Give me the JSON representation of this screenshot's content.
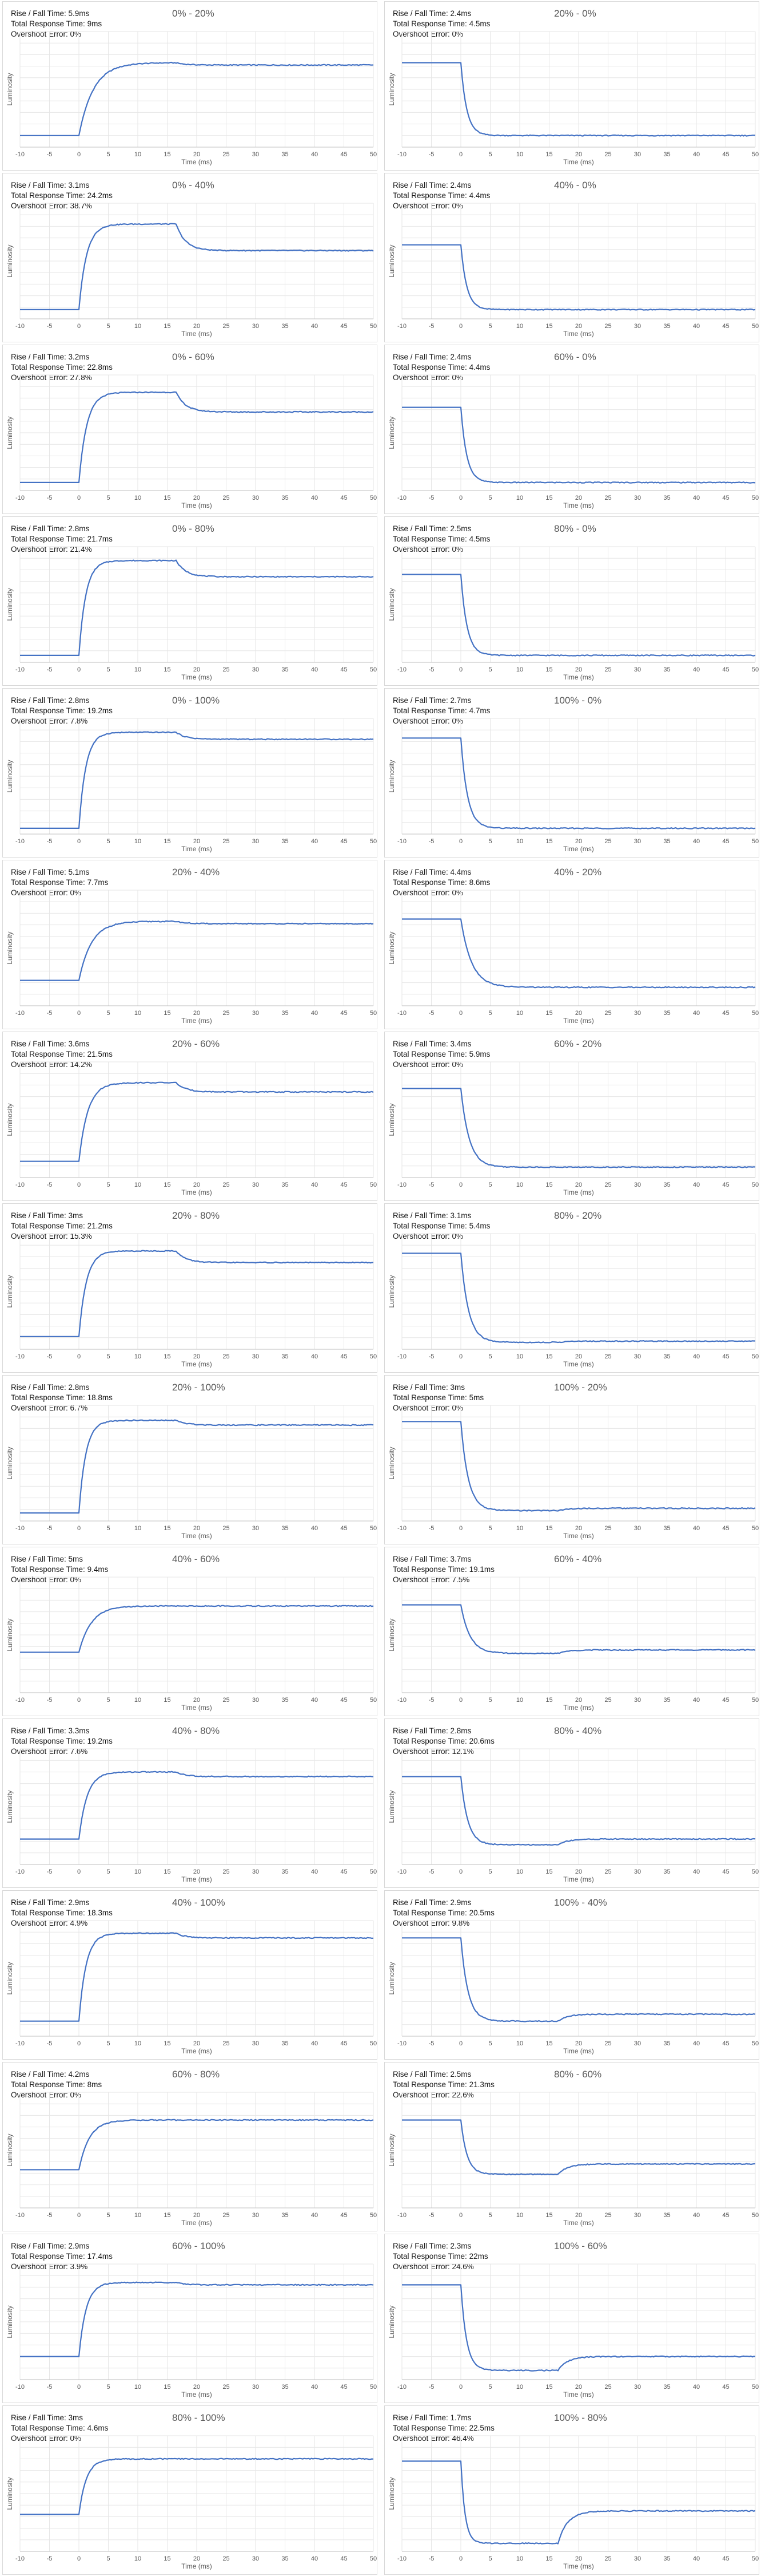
{
  "chart_common": {
    "xlabel": "Time (ms)",
    "ylabel": "Luminosity",
    "xlim": [
      -10,
      50
    ],
    "xticks": [
      -10,
      -5,
      0,
      5,
      10,
      15,
      20,
      25,
      30,
      35,
      40,
      45,
      50
    ],
    "line_color": "#4472c4",
    "grid_color": "#e6e6e6",
    "grid": true
  },
  "chart_data": [
    {
      "type": "line",
      "title": "0% - 20%",
      "stats": [
        "Rise / Fall Time: 5.9ms",
        "Total Response Time: 9ms",
        "Overshoot Error: 0%"
      ],
      "start": 0.1,
      "peak": 0.73,
      "final": 0.71,
      "direction": "rise",
      "response_ms": 5.9
    },
    {
      "type": "line",
      "title": "20% - 0%",
      "stats": [
        "Rise / Fall Time: 2.4ms",
        "Total Response Time: 4.5ms",
        "Overshoot Error: 0%"
      ],
      "start": 0.73,
      "peak": 0.1,
      "final": 0.1,
      "direction": "fall",
      "response_ms": 2.4
    },
    {
      "type": "line",
      "title": "0% - 40%",
      "stats": [
        "Rise / Fall Time: 3.1ms",
        "Total Response Time: 24.2ms",
        "Overshoot Error: 38.7%"
      ],
      "start": 0.08,
      "peak": 0.82,
      "final": 0.59,
      "direction": "rise",
      "response_ms": 3.1
    },
    {
      "type": "line",
      "title": "40% - 0%",
      "stats": [
        "Rise / Fall Time: 2.4ms",
        "Total Response Time: 4.4ms",
        "Overshoot Error: 0%"
      ],
      "start": 0.64,
      "peak": 0.08,
      "final": 0.08,
      "direction": "fall",
      "response_ms": 2.4
    },
    {
      "type": "line",
      "title": "0% - 60%",
      "stats": [
        "Rise / Fall Time: 3.2ms",
        "Total Response Time: 22.8ms",
        "Overshoot Error: 27.8%"
      ],
      "start": 0.07,
      "peak": 0.85,
      "final": 0.68,
      "direction": "rise",
      "response_ms": 3.2
    },
    {
      "type": "line",
      "title": "60% - 0%",
      "stats": [
        "Rise / Fall Time: 2.4ms",
        "Total Response Time: 4.4ms",
        "Overshoot Error: 0%"
      ],
      "start": 0.72,
      "peak": 0.07,
      "final": 0.07,
      "direction": "fall",
      "response_ms": 2.4
    },
    {
      "type": "line",
      "title": "0% - 80%",
      "stats": [
        "Rise / Fall Time: 2.8ms",
        "Total Response Time: 21.7ms",
        "Overshoot Error: 21.4%"
      ],
      "start": 0.06,
      "peak": 0.88,
      "final": 0.74,
      "direction": "rise",
      "response_ms": 2.8
    },
    {
      "type": "line",
      "title": "80% - 0%",
      "stats": [
        "Rise / Fall Time: 2.5ms",
        "Total Response Time: 4.5ms",
        "Overshoot Error: 0%"
      ],
      "start": 0.76,
      "peak": 0.06,
      "final": 0.06,
      "direction": "fall",
      "response_ms": 2.5
    },
    {
      "type": "line",
      "title": "0% - 100%",
      "stats": [
        "Rise / Fall Time: 2.8ms",
        "Total Response Time: 19.2ms",
        "Overshoot Error: 7.8%"
      ],
      "start": 0.05,
      "peak": 0.88,
      "final": 0.82,
      "direction": "rise",
      "response_ms": 2.8
    },
    {
      "type": "line",
      "title": "100% - 0%",
      "stats": [
        "Rise / Fall Time: 2.7ms",
        "Total Response Time: 4.7ms",
        "Overshoot Error: 0%"
      ],
      "start": 0.83,
      "peak": 0.05,
      "final": 0.05,
      "direction": "fall",
      "response_ms": 2.7
    },
    {
      "type": "line",
      "title": "20% - 40%",
      "stats": [
        "Rise / Fall Time: 5.1ms",
        "Total Response Time: 7.7ms",
        "Overshoot Error: 0%"
      ],
      "start": 0.22,
      "peak": 0.73,
      "final": 0.71,
      "direction": "rise",
      "response_ms": 5.1
    },
    {
      "type": "line",
      "title": "40% - 20%",
      "stats": [
        "Rise / Fall Time: 4.4ms",
        "Total Response Time: 8.6ms",
        "Overshoot Error: 0%"
      ],
      "start": 0.75,
      "peak": 0.16,
      "final": 0.16,
      "direction": "fall",
      "response_ms": 4.4
    },
    {
      "type": "line",
      "title": "20% - 60%",
      "stats": [
        "Rise / Fall Time: 3.6ms",
        "Total Response Time: 21.5ms",
        "Overshoot Error: 14.2%"
      ],
      "start": 0.14,
      "peak": 0.82,
      "final": 0.74,
      "direction": "rise",
      "response_ms": 3.6
    },
    {
      "type": "line",
      "title": "60% - 20%",
      "stats": [
        "Rise / Fall Time: 3.4ms",
        "Total Response Time: 5.9ms",
        "Overshoot Error: 0%"
      ],
      "start": 0.77,
      "peak": 0.09,
      "final": 0.09,
      "direction": "fall",
      "response_ms": 3.4
    },
    {
      "type": "line",
      "title": "20% - 80%",
      "stats": [
        "Rise / Fall Time: 3ms",
        "Total Response Time: 21.2ms",
        "Overshoot Error: 15.3%"
      ],
      "start": 0.11,
      "peak": 0.85,
      "final": 0.75,
      "direction": "rise",
      "response_ms": 3.0
    },
    {
      "type": "line",
      "title": "80% - 20%",
      "stats": [
        "Rise / Fall Time: 3.1ms",
        "Total Response Time: 5.4ms",
        "Overshoot Error: 0%"
      ],
      "start": 0.83,
      "peak": 0.06,
      "final": 0.07,
      "direction": "fall",
      "response_ms": 3.1
    },
    {
      "type": "line",
      "title": "20% - 100%",
      "stats": [
        "Rise / Fall Time: 2.8ms",
        "Total Response Time: 18.8ms",
        "Overshoot Error: 6.7%"
      ],
      "start": 0.07,
      "peak": 0.87,
      "final": 0.83,
      "direction": "rise",
      "response_ms": 2.8
    },
    {
      "type": "line",
      "title": "100% - 20%",
      "stats": [
        "Rise / Fall Time: 3ms",
        "Total Response Time: 5ms",
        "Overshoot Error: 0%"
      ],
      "start": 0.86,
      "peak": 0.09,
      "final": 0.11,
      "direction": "fall",
      "response_ms": 3.0
    },
    {
      "type": "line",
      "title": "40% - 60%",
      "stats": [
        "Rise / Fall Time: 5ms",
        "Total Response Time: 9.4ms",
        "Overshoot Error: 0%"
      ],
      "start": 0.35,
      "peak": 0.75,
      "final": 0.75,
      "direction": "rise",
      "response_ms": 5.0
    },
    {
      "type": "line",
      "title": "60% - 40%",
      "stats": [
        "Rise / Fall Time: 3.7ms",
        "Total Response Time: 19.1ms",
        "Overshoot Error: 7.5%"
      ],
      "start": 0.76,
      "peak": 0.34,
      "final": 0.37,
      "direction": "fall",
      "response_ms": 3.7
    },
    {
      "type": "line",
      "title": "40% - 80%",
      "stats": [
        "Rise / Fall Time: 3.3ms",
        "Total Response Time: 19.2ms",
        "Overshoot Error: 7.6%"
      ],
      "start": 0.22,
      "peak": 0.8,
      "final": 0.76,
      "direction": "rise",
      "response_ms": 3.3
    },
    {
      "type": "line",
      "title": "80% - 40%",
      "stats": [
        "Rise / Fall Time: 2.8ms",
        "Total Response Time: 20.6ms",
        "Overshoot Error: 12.1%"
      ],
      "start": 0.76,
      "peak": 0.17,
      "final": 0.22,
      "direction": "fall",
      "response_ms": 2.8
    },
    {
      "type": "line",
      "title": "40% - 100%",
      "stats": [
        "Rise / Fall Time: 2.9ms",
        "Total Response Time: 18.3ms",
        "Overshoot Error: 4.9%"
      ],
      "start": 0.13,
      "peak": 0.89,
      "final": 0.85,
      "direction": "rise",
      "response_ms": 2.9
    },
    {
      "type": "line",
      "title": "100% - 40%",
      "stats": [
        "Rise / Fall Time: 2.9ms",
        "Total Response Time: 20.5ms",
        "Overshoot Error: 9.8%"
      ],
      "start": 0.85,
      "peak": 0.13,
      "final": 0.19,
      "direction": "fall",
      "response_ms": 2.9
    },
    {
      "type": "line",
      "title": "60% - 80%",
      "stats": [
        "Rise / Fall Time: 4.2ms",
        "Total Response Time: 8ms",
        "Overshoot Error: 0%"
      ],
      "start": 0.33,
      "peak": 0.76,
      "final": 0.76,
      "direction": "rise",
      "response_ms": 4.2
    },
    {
      "type": "line",
      "title": "80% - 60%",
      "stats": [
        "Rise / Fall Time: 2.5ms",
        "Total Response Time: 21.3ms",
        "Overshoot Error: 22.6%"
      ],
      "start": 0.76,
      "peak": 0.29,
      "final": 0.38,
      "direction": "fall",
      "response_ms": 2.5
    },
    {
      "type": "line",
      "title": "60% - 100%",
      "stats": [
        "Rise / Fall Time: 2.9ms",
        "Total Response Time: 17.4ms",
        "Overshoot Error: 3.9%"
      ],
      "start": 0.2,
      "peak": 0.84,
      "final": 0.82,
      "direction": "rise",
      "response_ms": 2.9
    },
    {
      "type": "line",
      "title": "100% - 60%",
      "stats": [
        "Rise / Fall Time: 2.3ms",
        "Total Response Time: 22ms",
        "Overshoot Error: 24.6%"
      ],
      "start": 0.82,
      "peak": 0.08,
      "final": 0.2,
      "direction": "fall",
      "response_ms": 2.3
    },
    {
      "type": "line",
      "title": "80% - 100%",
      "stats": [
        "Rise / Fall Time: 3ms",
        "Total Response Time: 4.6ms",
        "Overshoot Error: 0%"
      ],
      "start": 0.32,
      "peak": 0.8,
      "final": 0.8,
      "direction": "rise",
      "response_ms": 3.0
    },
    {
      "type": "line",
      "title": "100% - 80%",
      "stats": [
        "Rise / Fall Time: 1.7ms",
        "Total Response Time: 22.5ms",
        "Overshoot Error: 46.4%"
      ],
      "start": 0.78,
      "peak": 0.07,
      "final": 0.35,
      "direction": "fall",
      "response_ms": 1.7
    }
  ]
}
